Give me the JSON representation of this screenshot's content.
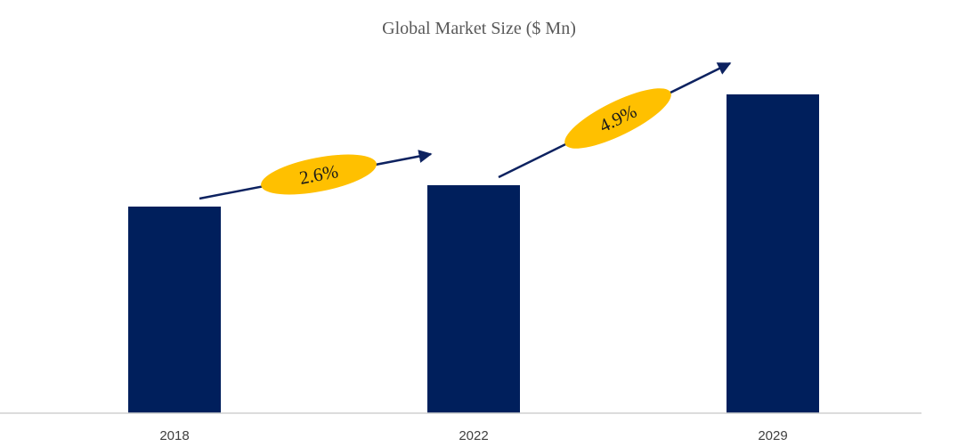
{
  "chart_data": {
    "type": "bar",
    "title": "Global Market Size ($ Mn)",
    "categories": [
      "2018",
      "2022",
      "2029"
    ],
    "values": [
      232,
      256,
      358
    ],
    "ylim": [
      0,
      400
    ],
    "grid": false,
    "legend": "none",
    "annotations": [
      {
        "label": "2.6%",
        "from": "2018",
        "to": "2022"
      },
      {
        "label": "4.9%",
        "from": "2022",
        "to": "2029"
      }
    ],
    "colors": {
      "bar": "#001f5c",
      "arrow": "#0d2260",
      "badge": "#ffc000",
      "axis": "#d0d0d0"
    }
  }
}
